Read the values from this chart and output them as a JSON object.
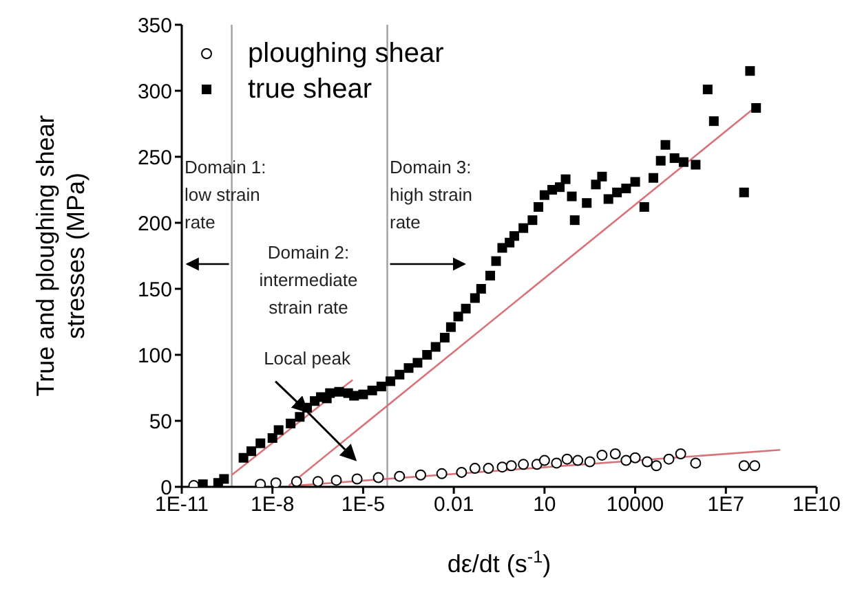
{
  "chart_data": {
    "type": "scatter",
    "xlabel": "dε/dt (s$^{-1}$)",
    "ylabel": "True and ploughing shear stresses (MPa)",
    "log": "x",
    "xlim": [
      1e-11,
      10000000000.0
    ],
    "xticks": [
      {
        "value": 1e-11,
        "label": "1E-11"
      },
      {
        "value": 1e-08,
        "label": "1E-8"
      },
      {
        "value": 1e-05,
        "label": "1E-5"
      },
      {
        "value": 0.01,
        "label": "0.01"
      },
      10,
      10000,
      {
        "value": 10000000.0,
        "label": "1E7"
      },
      {
        "value": 10000000000.0,
        "label": "1E10"
      }
    ],
    "ylim": [
      0,
      350
    ],
    "yticks": [
      0,
      50,
      100,
      150,
      200,
      250,
      300,
      350
    ],
    "grid": false,
    "legend": "top left",
    "series": [
      {
        "name": "ploughing shear",
        "marker": "circle",
        "color": "#000000",
        "x": [
          2.5e-11,
          4e-09,
          1.3e-08,
          6.3e-08,
          3.2e-07,
          1.3e-06,
          6.3e-06,
          3.2e-05,
          0.00016,
          0.0008,
          0.004,
          0.018,
          0.05,
          0.14,
          0.4,
          0.8,
          2,
          5.6,
          10,
          25,
          56,
          126,
          316,
          800,
          2200,
          5000,
          10000,
          25000,
          50000,
          130000,
          320000,
          1000000,
          40000000,
          90000000
        ],
        "values": [
          1,
          2,
          3,
          4,
          4,
          5,
          6,
          7,
          8,
          9,
          10,
          11,
          14,
          14,
          15,
          16,
          17,
          17,
          20,
          18,
          21,
          20,
          19,
          24,
          25,
          20,
          22,
          19,
          16,
          21,
          25,
          18,
          16,
          16
        ]
      },
      {
        "name": "true shear",
        "marker": "square",
        "color": "#000000",
        "x": [
          5e-11,
          1.6e-10,
          2.5e-10,
          1.1e-09,
          2e-09,
          4e-09,
          1e-08,
          1.6e-08,
          4e-08,
          8e-08,
          1.4e-07,
          2.5e-07,
          4e-07,
          6.3e-07,
          8e-07,
          1.6e-06,
          3.2e-06,
          5e-06,
          1e-05,
          2e-05,
          4e-05,
          8e-05,
          0.00016,
          0.00032,
          0.00063,
          0.0013,
          0.0025,
          0.005,
          0.008,
          0.014,
          0.025,
          0.05,
          0.08,
          0.16,
          0.25,
          0.4,
          0.7,
          1,
          2,
          4,
          6.3,
          10,
          18,
          32,
          50,
          80,
          100,
          250,
          500,
          800,
          1300,
          2500,
          5000,
          10000,
          20000,
          40000,
          70000,
          100000,
          200000,
          400000,
          1000000,
          2500000,
          4000000,
          40000000,
          63000000,
          100000000
        ],
        "values": [
          2,
          3,
          6,
          22,
          27,
          33,
          37,
          43,
          48,
          53,
          60,
          65,
          68,
          67,
          71,
          72,
          71,
          69,
          70,
          73,
          76,
          80,
          85,
          90,
          94,
          100,
          106,
          113,
          121,
          129,
          135,
          143,
          150,
          160,
          171,
          181,
          185,
          190,
          196,
          202,
          212,
          221,
          225,
          227,
          233,
          220,
          202,
          215,
          229,
          235,
          218,
          223,
          226,
          231,
          212,
          234,
          247,
          259,
          249,
          246,
          244,
          301,
          277,
          223,
          315,
          287
        ]
      },
      {
        "type": "line",
        "marker": "none",
        "color": "#d9737a",
        "x": [
          4.5e-10,
          4.5e-06
        ],
        "values": [
          9,
          81
        ]
      },
      {
        "type": "line",
        "marker": "none",
        "color": "#d9737a",
        "x": [
          3.5e-08,
          100000000.0
        ],
        "values": [
          1,
          288
        ]
      },
      {
        "type": "line",
        "marker": "none",
        "color": "#d9737a",
        "x": [
          6.3e-08,
          630000000.0
        ],
        "values": [
          1,
          28
        ]
      }
    ],
    "ref_lines": [
      {
        "axis": "x",
        "value": 4.5e-10,
        "color": "#a0a0a0"
      },
      {
        "axis": "x",
        "value": 6.3e-05,
        "color": "#a0a0a0"
      }
    ],
    "annotations": [
      "Domain 1: low strain rate",
      "Domain 2: intermediate strain rate",
      "Domain 3: high strain rate",
      {
        "text": "Local peak",
        "x": 1.4e-07,
        "y": 57
      }
    ]
  }
}
